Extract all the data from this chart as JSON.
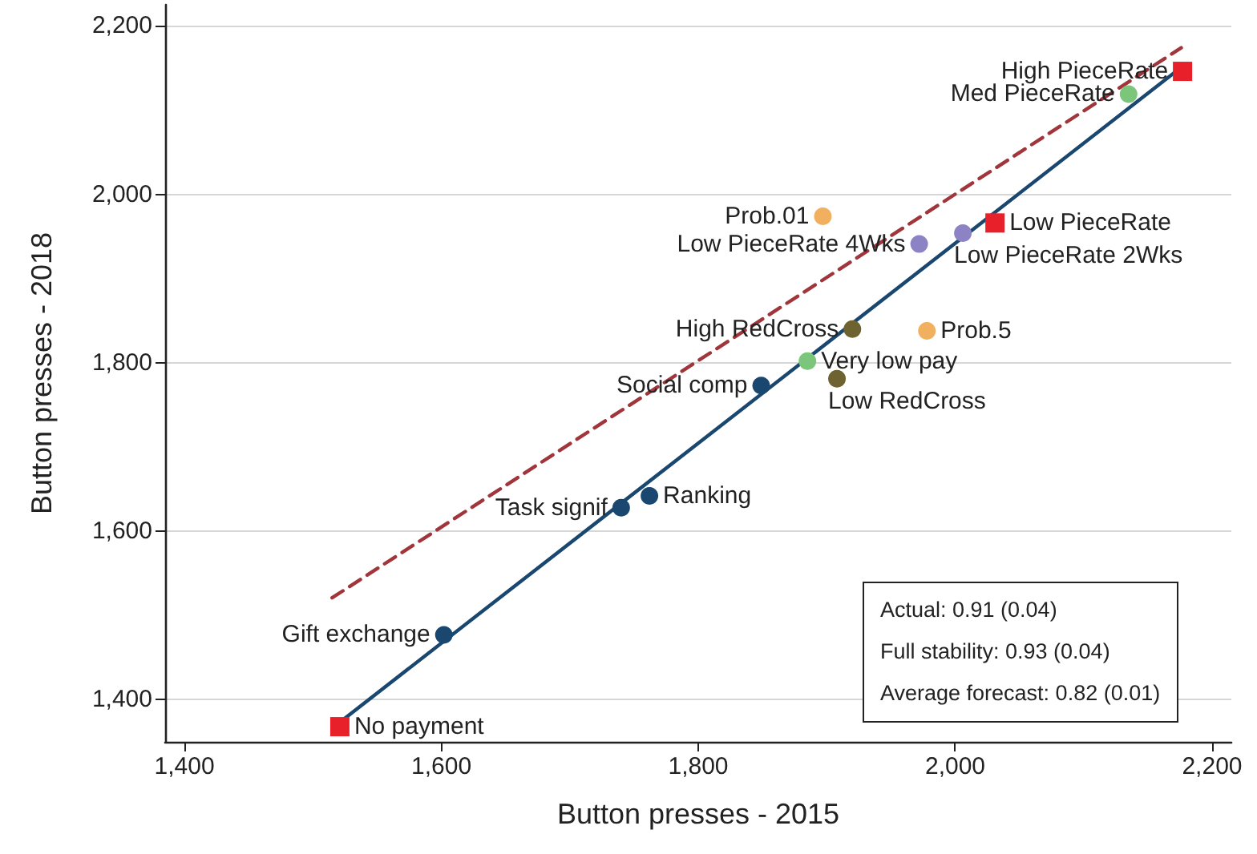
{
  "chart_data": {
    "type": "scatter",
    "xlabel": "Button presses - 2015",
    "ylabel": "Button presses - 2018",
    "xlim": [
      1385,
      2215
    ],
    "ylim": [
      1350,
      2225
    ],
    "xticks": [
      {
        "value": 1400,
        "label": "1,400"
      },
      {
        "value": 1600,
        "label": "1,600"
      },
      {
        "value": 1800,
        "label": "1,800"
      },
      {
        "value": 2000,
        "label": "2,000"
      },
      {
        "value": 2200,
        "label": "2,200"
      }
    ],
    "yticks": [
      {
        "value": 1400,
        "label": "1,400"
      },
      {
        "value": 1600,
        "label": "1,600"
      },
      {
        "value": 1800,
        "label": "1,800"
      },
      {
        "value": 2000,
        "label": "2,000"
      },
      {
        "value": 2200,
        "label": "2,200"
      }
    ],
    "grid": "y",
    "legend": false,
    "annotations": [
      "Actual: 0.91 (0.04)",
      "Full stability: 0.93 (0.04)",
      "Average forecast: 0.82 (0.01)"
    ],
    "series": [
      {
        "name": "No payment",
        "color": "#e8202a",
        "marker": "square",
        "x": [
          1521
        ],
        "values": [
          1368
        ]
      },
      {
        "name": "Gift exchange",
        "color": "#1a476f",
        "marker": "circle",
        "x": [
          1602
        ],
        "values": [
          1477
        ]
      },
      {
        "name": "Task signif",
        "color": "#1a476f",
        "marker": "circle",
        "x": [
          1740
        ],
        "values": [
          1628
        ]
      },
      {
        "name": "Ranking",
        "color": "#1a476f",
        "marker": "circle",
        "x": [
          1762
        ],
        "values": [
          1642
        ]
      },
      {
        "name": "Social comp",
        "color": "#1a476f",
        "marker": "circle",
        "x": [
          1849
        ],
        "values": [
          1773
        ]
      },
      {
        "name": "Very low pay",
        "color": "#7bc67b",
        "marker": "circle",
        "x": [
          1885
        ],
        "values": [
          1802
        ]
      },
      {
        "name": "Low RedCross",
        "color": "#6e6230",
        "marker": "circle",
        "x": [
          1908
        ],
        "values": [
          1781
        ]
      },
      {
        "name": "High RedCross",
        "color": "#6e6230",
        "marker": "circle",
        "x": [
          1920
        ],
        "values": [
          1840
        ]
      },
      {
        "name": "Prob.5",
        "color": "#f0b060",
        "marker": "circle",
        "x": [
          1978
        ],
        "values": [
          1838
        ]
      },
      {
        "name": "Prob.01",
        "color": "#f0b060",
        "marker": "circle",
        "x": [
          1897
        ],
        "values": [
          1974
        ]
      },
      {
        "name": "Low PieceRate 4Wks",
        "color": "#8c83c5",
        "marker": "circle",
        "x": [
          1972
        ],
        "values": [
          1941
        ]
      },
      {
        "name": "Low PieceRate 2Wks",
        "color": "#8c83c5",
        "marker": "circle",
        "x": [
          2006
        ],
        "values": [
          1954
        ]
      },
      {
        "name": "Low PieceRate",
        "color": "#e8202a",
        "marker": "square",
        "x": [
          2031
        ],
        "values": [
          1966
        ]
      },
      {
        "name": "Med PieceRate",
        "color": "#7bc67b",
        "marker": "circle",
        "x": [
          2135
        ],
        "values": [
          2119
        ]
      },
      {
        "name": "High PieceRate",
        "color": "#e8202a",
        "marker": "square",
        "x": [
          2177
        ],
        "values": [
          2146
        ]
      },
      {
        "type": "line",
        "color": "#1a476f",
        "line_style": "solid",
        "marker": "none",
        "x": [
          1519,
          2172
        ],
        "values": [
          1371,
          2146
        ]
      },
      {
        "type": "line",
        "color": "#a0363c",
        "line_style": "dashed",
        "marker": "none",
        "x": [
          1515,
          2176
        ],
        "values": [
          1521,
          2174
        ]
      }
    ]
  }
}
